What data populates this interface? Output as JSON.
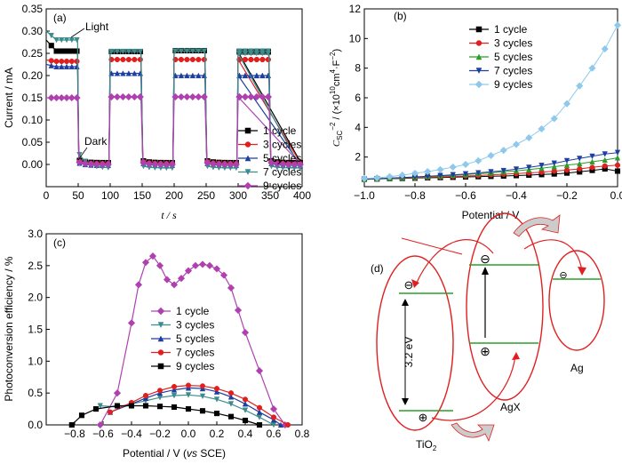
{
  "chart_data": [
    {
      "panel": "(a)",
      "type": "line",
      "xlabel": "t / s",
      "ylabel": "Current / mA",
      "xlim": [
        0,
        400
      ],
      "ylim": [
        -0.05,
        0.35
      ],
      "xticks": [
        0,
        50,
        100,
        150,
        200,
        250,
        300,
        350,
        400
      ],
      "yticks": [
        0.0,
        0.05,
        0.1,
        0.15,
        0.2,
        0.25,
        0.3,
        0.35
      ],
      "annotations": [
        "Light",
        "Dark"
      ],
      "legend_position": "bottom-right",
      "series": [
        {
          "name": "1 cycle",
          "color": "#000000",
          "marker": "square",
          "on": [
            0.255,
            0.254,
            0.256,
            0.254,
            0.253
          ],
          "off": 0.004,
          "start": 0.28
        },
        {
          "name": "3 cycles",
          "color": "#e02020",
          "marker": "circle",
          "on": [
            0.232,
            0.236,
            0.236,
            0.236,
            0.236
          ],
          "off": 0.002,
          "start": 0.235
        },
        {
          "name": "5 cycles",
          "color": "#1e3fa0",
          "marker": "triangle-up",
          "on": [
            0.22,
            0.205,
            0.2,
            0.2,
            0.2
          ],
          "off": -0.002,
          "start": 0.225
        },
        {
          "name": "7 cycles",
          "color": "#3c8c8c",
          "marker": "triangle-down",
          "on": [
            0.28,
            0.254,
            0.255,
            0.255,
            0.25
          ],
          "off": -0.008,
          "start": 0.3
        },
        {
          "name": "9 cycles",
          "color": "#b040b0",
          "marker": "diamond",
          "on": [
            0.15,
            0.152,
            0.152,
            0.152,
            0.152
          ],
          "off": 0.0,
          "start": 0.15
        }
      ]
    },
    {
      "panel": "(b)",
      "type": "scatter",
      "xlabel": "Potential / V",
      "ylabel_main": "C",
      "ylabel_sub": "SC",
      "ylabel_sup": "−2",
      "ylabel_rest": " / (×10",
      "ylabel_exp": "10",
      "ylabel_unit": "cm",
      "ylabel_unit_exp": "4",
      "ylabel_unit2": "·F",
      "ylabel_unit2_exp": "−2",
      "ylabel_close": ")",
      "xlim": [
        -1.0,
        0.0
      ],
      "ylim": [
        0,
        12
      ],
      "xticks": [
        -1.0,
        -0.8,
        -0.6,
        -0.4,
        -0.2,
        0.0
      ],
      "yticks": [
        2,
        4,
        6,
        8,
        10,
        12
      ],
      "legend_position": "top-left",
      "x": [
        -1.0,
        -0.95,
        -0.9,
        -0.85,
        -0.8,
        -0.75,
        -0.7,
        -0.65,
        -0.6,
        -0.55,
        -0.5,
        -0.45,
        -0.4,
        -0.35,
        -0.3,
        -0.25,
        -0.2,
        -0.15,
        -0.1,
        -0.05,
        0.0
      ],
      "series": [
        {
          "name": "1 cycle",
          "color": "#000000",
          "marker": "square",
          "values": [
            0.5,
            0.52,
            0.54,
            0.56,
            0.58,
            0.6,
            0.62,
            0.64,
            0.66,
            0.68,
            0.7,
            0.72,
            0.75,
            0.78,
            0.82,
            0.86,
            0.92,
            1.0,
            1.1,
            1.2,
            1.05
          ]
        },
        {
          "name": "3 cycles",
          "color": "#e02020",
          "marker": "circle",
          "values": [
            0.5,
            0.52,
            0.55,
            0.58,
            0.6,
            0.63,
            0.66,
            0.69,
            0.72,
            0.75,
            0.8,
            0.84,
            0.88,
            0.93,
            0.98,
            1.05,
            1.12,
            1.2,
            1.3,
            1.4,
            1.45
          ]
        },
        {
          "name": "5 cycles",
          "color": "#2a9d2a",
          "marker": "triangle-up",
          "values": [
            0.5,
            0.53,
            0.56,
            0.6,
            0.64,
            0.68,
            0.72,
            0.77,
            0.82,
            0.87,
            0.93,
            1.0,
            1.07,
            1.15,
            1.25,
            1.35,
            1.45,
            1.55,
            1.68,
            1.8,
            1.95
          ]
        },
        {
          "name": "7 cycles",
          "color": "#1e3fa0",
          "marker": "triangle-down",
          "values": [
            0.5,
            0.54,
            0.58,
            0.62,
            0.66,
            0.7,
            0.75,
            0.8,
            0.86,
            0.93,
            1.0,
            1.08,
            1.18,
            1.3,
            1.43,
            1.58,
            1.75,
            1.9,
            2.05,
            2.2,
            2.3
          ]
        },
        {
          "name": "9 cycles",
          "color": "#8ec9ec",
          "marker": "diamond",
          "values": [
            0.55,
            0.6,
            0.68,
            0.78,
            0.9,
            1.02,
            1.15,
            1.32,
            1.5,
            1.75,
            2.1,
            2.45,
            2.85,
            3.3,
            3.9,
            4.6,
            5.6,
            6.8,
            8.0,
            9.3,
            10.9
          ]
        }
      ]
    },
    {
      "panel": "(c)",
      "type": "line",
      "xlabel_main": "Potential / V (",
      "xlabel_italic": "vs",
      "xlabel_end": " SCE)",
      "ylabel": "Photoconversion efficiency / %",
      "xlim": [
        -1.0,
        0.8
      ],
      "ylim": [
        0,
        3.0
      ],
      "xticks": [
        -0.8,
        -0.6,
        -0.4,
        -0.2,
        0.0,
        0.2,
        0.4,
        0.6,
        0.8
      ],
      "yticks": [
        0.0,
        0.5,
        1.0,
        1.5,
        2.0,
        2.5,
        3.0
      ],
      "legend_position": "center",
      "series": [
        {
          "name": "1 cycle",
          "color": "#b040b0",
          "marker": "diamond",
          "x": [
            -0.62,
            -0.5,
            -0.4,
            -0.35,
            -0.3,
            -0.25,
            -0.2,
            -0.15,
            -0.1,
            -0.05,
            0.0,
            0.05,
            0.1,
            0.15,
            0.2,
            0.25,
            0.3,
            0.35,
            0.4,
            0.5,
            0.6,
            0.68
          ],
          "values": [
            0.0,
            0.5,
            1.6,
            2.2,
            2.55,
            2.65,
            2.5,
            2.28,
            2.2,
            2.3,
            2.42,
            2.5,
            2.52,
            2.5,
            2.45,
            2.35,
            2.15,
            1.8,
            1.45,
            0.85,
            0.25,
            0.0
          ]
        },
        {
          "name": "3 cycles",
          "color": "#3c8c8c",
          "marker": "triangle-down",
          "x": [
            -0.62,
            -0.5,
            -0.4,
            -0.3,
            -0.2,
            -0.1,
            0.0,
            0.1,
            0.2,
            0.3,
            0.4,
            0.5,
            0.6
          ],
          "values": [
            0.3,
            0.28,
            0.33,
            0.38,
            0.43,
            0.46,
            0.47,
            0.45,
            0.4,
            0.33,
            0.23,
            0.12,
            0.0
          ]
        },
        {
          "name": "5 cycles",
          "color": "#1e3fa0",
          "marker": "triangle-up",
          "x": [
            -0.55,
            -0.4,
            -0.3,
            -0.2,
            -0.1,
            0.0,
            0.1,
            0.2,
            0.3,
            0.4,
            0.5,
            0.6,
            0.65
          ],
          "values": [
            0.2,
            0.33,
            0.42,
            0.5,
            0.55,
            0.58,
            0.57,
            0.52,
            0.44,
            0.33,
            0.2,
            0.08,
            0.0
          ]
        },
        {
          "name": "7 cycles",
          "color": "#e02020",
          "marker": "circle",
          "x": [
            -0.55,
            -0.4,
            -0.3,
            -0.2,
            -0.1,
            0.0,
            0.1,
            0.2,
            0.3,
            0.4,
            0.5,
            0.6,
            0.7
          ],
          "values": [
            0.2,
            0.35,
            0.46,
            0.54,
            0.6,
            0.62,
            0.61,
            0.57,
            0.5,
            0.4,
            0.27,
            0.12,
            0.0
          ]
        },
        {
          "name": "9 cycles",
          "color": "#000000",
          "marker": "square",
          "x": [
            -0.82,
            -0.75,
            -0.65,
            -0.5,
            -0.4,
            -0.3,
            -0.2,
            -0.1,
            0.0,
            0.1,
            0.2,
            0.3,
            0.4,
            0.5
          ],
          "values": [
            0.0,
            0.15,
            0.25,
            0.3,
            0.3,
            0.3,
            0.29,
            0.28,
            0.25,
            0.22,
            0.18,
            0.13,
            0.07,
            0.0
          ]
        }
      ]
    }
  ],
  "diagram_d": {
    "panel": "(d)",
    "labels": {
      "tio2_main": "TiO",
      "tio2_sub": "2",
      "agx": "AgX",
      "ag": "Ag",
      "gap": "3.2 eV"
    },
    "symbols": {
      "minus": "⊖",
      "plus": "⊕"
    },
    "colors": {
      "ellipse": "#e02020",
      "level": "#2a9d2a",
      "arrow": "#e02020",
      "curved_arrow": "#cccccc"
    }
  }
}
